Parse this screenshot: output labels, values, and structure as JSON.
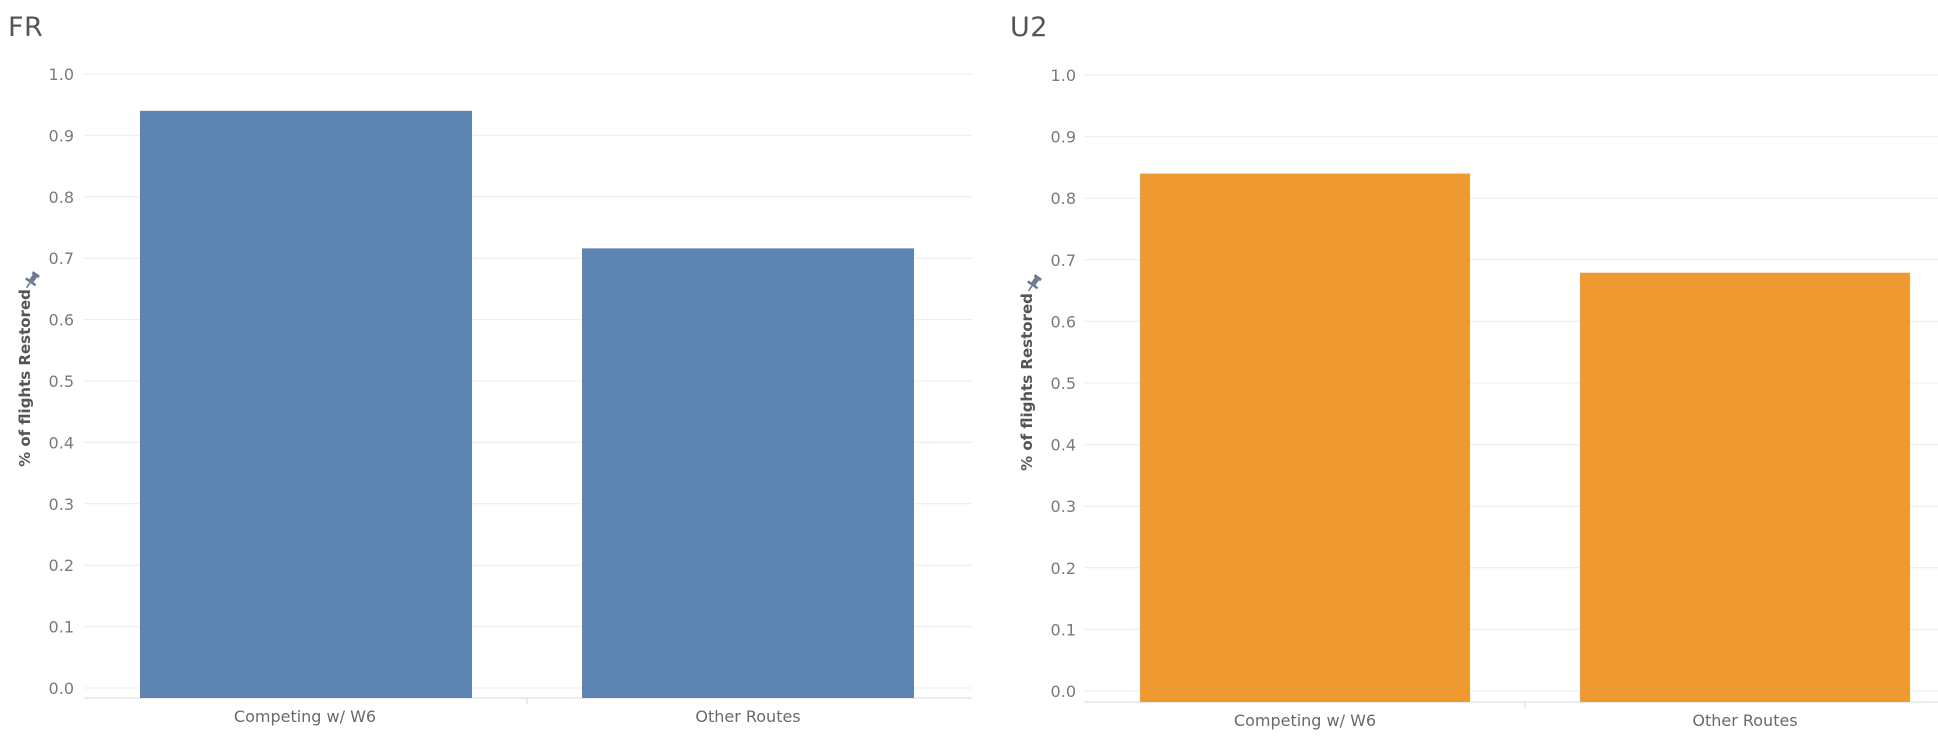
{
  "chart_data": [
    {
      "type": "bar",
      "title": "FR",
      "ylabel": "% of flights Restored",
      "categories": [
        "Competing w/ W6",
        "Other Routes"
      ],
      "values": [
        0.94,
        0.716
      ],
      "ylim": [
        0,
        1.0
      ],
      "yticks": [
        "0.0",
        "0.1",
        "0.2",
        "0.3",
        "0.4",
        "0.5",
        "0.6",
        "0.7",
        "0.8",
        "0.9",
        "1.0"
      ],
      "color": "#5e84b1",
      "grid": true,
      "legend": "none"
    },
    {
      "type": "bar",
      "title": "U2",
      "ylabel": "% of flights Restored",
      "categories": [
        "Competing w/ W6",
        "Other Routes"
      ],
      "values": [
        0.84,
        0.679
      ],
      "ylim": [
        0,
        1.0
      ],
      "yticks": [
        "0.0",
        "0.1",
        "0.2",
        "0.3",
        "0.4",
        "0.5",
        "0.6",
        "0.7",
        "0.8",
        "0.9",
        "1.0"
      ],
      "color": "#ee9a30",
      "grid": true,
      "legend": "none"
    }
  ],
  "icons": {
    "axis_pin": "pin-icon"
  }
}
